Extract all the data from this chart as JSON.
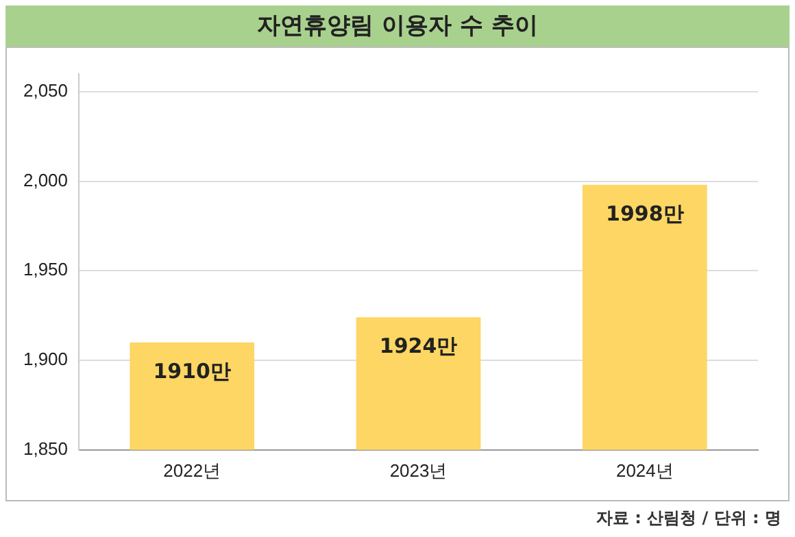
{
  "chart_data": {
    "type": "bar",
    "title": "자연휴양림 이용자 수 추이",
    "categories": [
      "2022년",
      "2023년",
      "2024년"
    ],
    "values": [
      1910,
      1924,
      1998
    ],
    "value_labels": [
      "1910만",
      "1924만",
      "1998만"
    ],
    "color": "#fdd663",
    "ylim": [
      1850,
      2060
    ],
    "yticks": [
      {
        "value": 1850,
        "label": "1,850"
      },
      {
        "value": 1900,
        "label": "1,900"
      },
      {
        "value": 1950,
        "label": "1,950"
      },
      {
        "value": 2000,
        "label": "2,000"
      },
      {
        "value": 2050,
        "label": "2,050"
      }
    ],
    "grid": "y",
    "annotations": [
      "자료 : 산림청 / 단위 : 명"
    ]
  }
}
